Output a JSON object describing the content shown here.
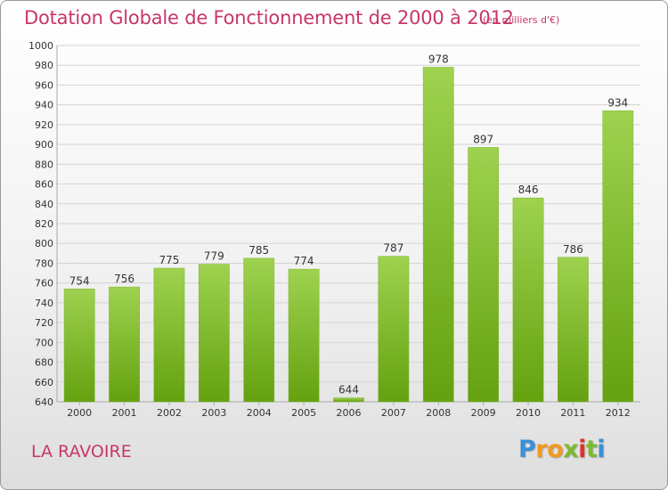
{
  "header": {
    "title": "Dotation Globale de Fonctionnement de 2000 à 2012",
    "unit_note": "(en milliers d'€)"
  },
  "footer": {
    "place": "LA RAVOIRE",
    "brand": "Proxiti"
  },
  "colors": {
    "title": "#c8366b",
    "bar_light": "#9ed24f",
    "bar_dark": "#64a10f",
    "grid": "#d4d4d4",
    "axis_text": "#333333"
  },
  "chart_data": {
    "type": "bar",
    "title": "Dotation Globale de Fonctionnement de 2000 à 2012",
    "categories": [
      "2000",
      "2001",
      "2002",
      "2003",
      "2004",
      "2005",
      "2006",
      "2007",
      "2008",
      "2009",
      "2010",
      "2011",
      "2012"
    ],
    "values": [
      754,
      756,
      775,
      779,
      785,
      774,
      644,
      787,
      978,
      897,
      846,
      786,
      934
    ],
    "xlabel": "",
    "ylabel": "",
    "ylim": [
      640,
      1000
    ],
    "yticks": [
      640,
      660,
      680,
      700,
      720,
      740,
      760,
      780,
      800,
      820,
      840,
      860,
      880,
      900,
      920,
      940,
      960,
      980,
      1000
    ],
    "grid": true,
    "data_labels": true
  }
}
